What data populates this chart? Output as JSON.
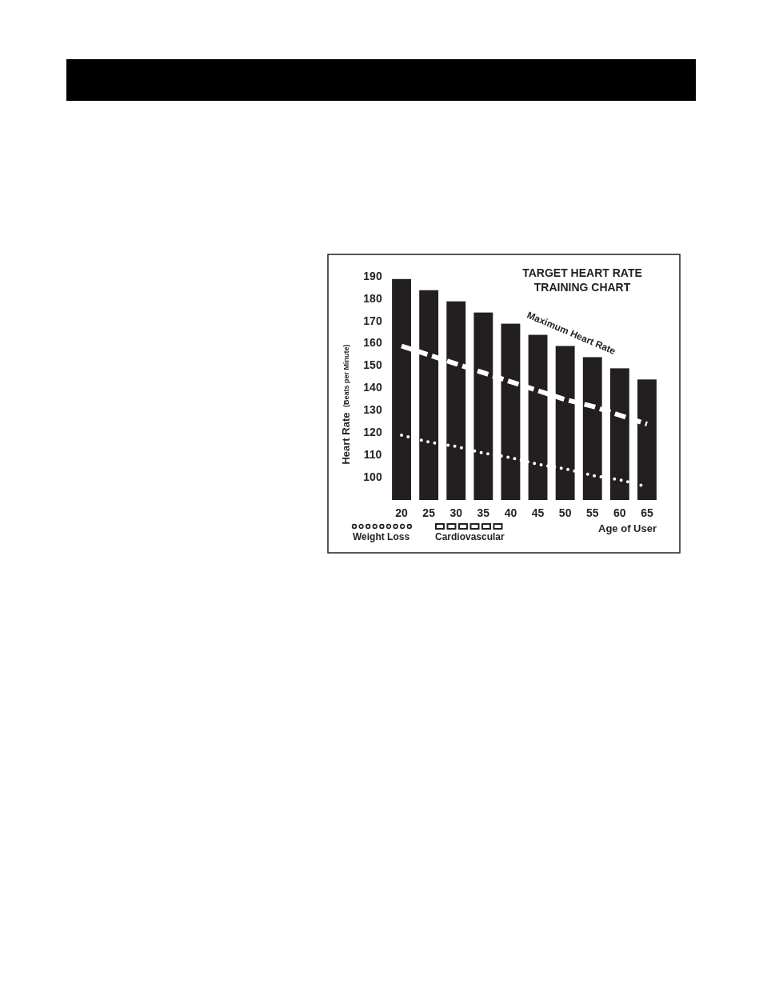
{
  "chart_data": {
    "type": "bar",
    "title": "TARGET HEART RATE TRAINING CHART",
    "xlabel": "Age of User",
    "ylabel": "Heart Rate (Beats per Minute)",
    "categories": [
      "20",
      "25",
      "30",
      "35",
      "40",
      "45",
      "50",
      "55",
      "60",
      "65"
    ],
    "series": [
      {
        "color": "#231f20",
        "values": [
          189,
          184,
          179,
          174,
          169,
          164,
          159,
          154,
          149,
          144
        ]
      },
      {
        "type": "line",
        "name": "Weight Loss",
        "color": "#ffffff",
        "line_style": "dotted",
        "values": [
          119,
          116,
          114,
          111,
          109,
          106,
          104,
          101,
          99,
          96
        ]
      },
      {
        "type": "line",
        "name": "Cardiovascular",
        "color": "#ffffff",
        "line_style": "dashed",
        "values": [
          159,
          155,
          151,
          147,
          143,
          139,
          135,
          132,
          128,
          124
        ]
      }
    ],
    "ylim": [
      90,
      190
    ],
    "yticks": [
      100,
      110,
      120,
      130,
      140,
      150,
      160,
      170,
      180,
      190
    ],
    "annotations": [
      "Maximum Heart Rate"
    ],
    "legend": "bottom left"
  }
}
